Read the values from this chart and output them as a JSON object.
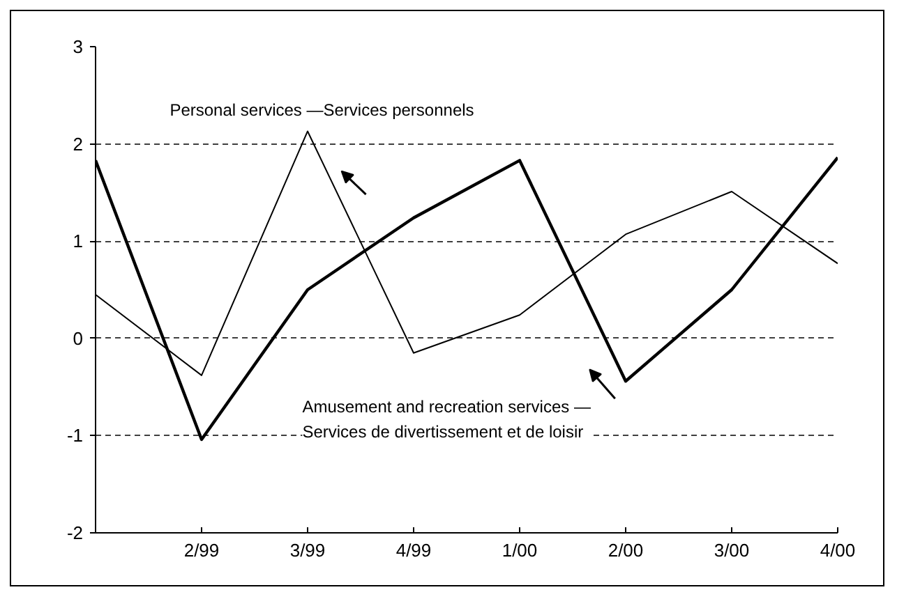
{
  "chart_data": {
    "type": "line",
    "categories": [
      null,
      "2/99",
      "3/99",
      "4/99",
      "1/00",
      "2/00",
      "3/00",
      "4/00"
    ],
    "series": [
      {
        "name": "Personal services —Services personnels",
        "color": "#000000",
        "values": [
          0.45,
          -0.38,
          2.13,
          -0.15,
          0.24,
          1.07,
          1.51,
          0.77
        ]
      },
      {
        "name": "Amusement and recreation services —\nServices de divertissement et de loisir",
        "color": "#000000",
        "values": [
          1.83,
          -1.04,
          0.5,
          1.24,
          1.83,
          -0.44,
          0.5,
          1.86
        ]
      }
    ],
    "ylim": [
      -2,
      3
    ],
    "yticks": [
      -2,
      -1,
      0,
      1,
      2,
      3
    ],
    "grid": "y",
    "marker": "none",
    "line_style": "solid"
  }
}
